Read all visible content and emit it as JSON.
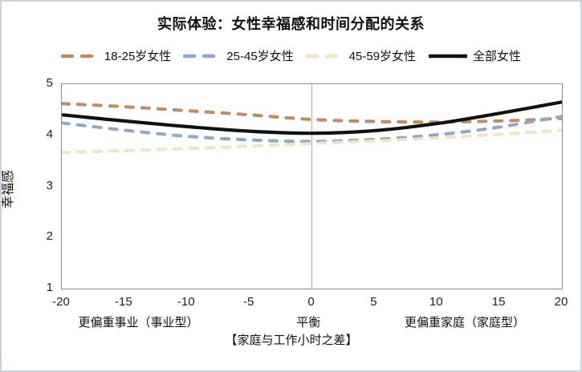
{
  "title": "实际体验：女性幸福感和时间分配的关系",
  "legend": {
    "items": [
      {
        "label": "18-25岁女性",
        "color": "#C48A5F",
        "style": "dashed"
      },
      {
        "label": "25-45岁女性",
        "color": "#8FA8C7",
        "style": "dashed"
      },
      {
        "label": "45-59岁女性",
        "color": "#F0E4C3",
        "style": "dashed"
      },
      {
        "label": "全部女性",
        "color": "#111111",
        "style": "solid"
      }
    ]
  },
  "chart_data": {
    "type": "line",
    "title": "实际体验：女性幸福感和时间分配的关系",
    "xlabel": "【家庭与工作小时之差】",
    "ylabel": "幸福感",
    "xlim": [
      -20,
      20
    ],
    "ylim": [
      1,
      5
    ],
    "x_ticks": [
      -20,
      -15,
      -10,
      -5,
      0,
      5,
      10,
      15,
      20
    ],
    "y_ticks": [
      5,
      4,
      3,
      2,
      1
    ],
    "gridline_x": 0,
    "grid": "single-vertical-line-at-zero",
    "legend_position": "top",
    "x": [
      -20,
      -15,
      -10,
      -5,
      0,
      5,
      10,
      15,
      20
    ],
    "series": [
      {
        "name": "18-25岁女性",
        "color": "#C48A5F",
        "style": "dashed",
        "values": [
          4.62,
          4.56,
          4.48,
          4.4,
          4.31,
          4.27,
          4.26,
          4.28,
          4.33
        ]
      },
      {
        "name": "25-45岁女性",
        "color": "#8FA8C7",
        "style": "dashed",
        "values": [
          4.24,
          4.1,
          3.98,
          3.91,
          3.88,
          3.92,
          4.01,
          4.16,
          4.37
        ]
      },
      {
        "name": "45-59岁女性",
        "color": "#F0E4C3",
        "style": "dashed",
        "values": [
          3.66,
          3.7,
          3.74,
          3.79,
          3.84,
          3.89,
          3.95,
          4.02,
          4.1
        ]
      },
      {
        "name": "全部女性",
        "color": "#111111",
        "style": "solid",
        "values": [
          4.4,
          4.28,
          4.17,
          4.08,
          4.04,
          4.09,
          4.23,
          4.43,
          4.65
        ]
      }
    ],
    "zone_labels": [
      {
        "text": "更偏重事业（事业型）",
        "x": -13.8
      },
      {
        "text": "平衡",
        "x": -0.2
      },
      {
        "text": "更偏重家庭（家庭型）",
        "x": 12.3
      }
    ]
  }
}
